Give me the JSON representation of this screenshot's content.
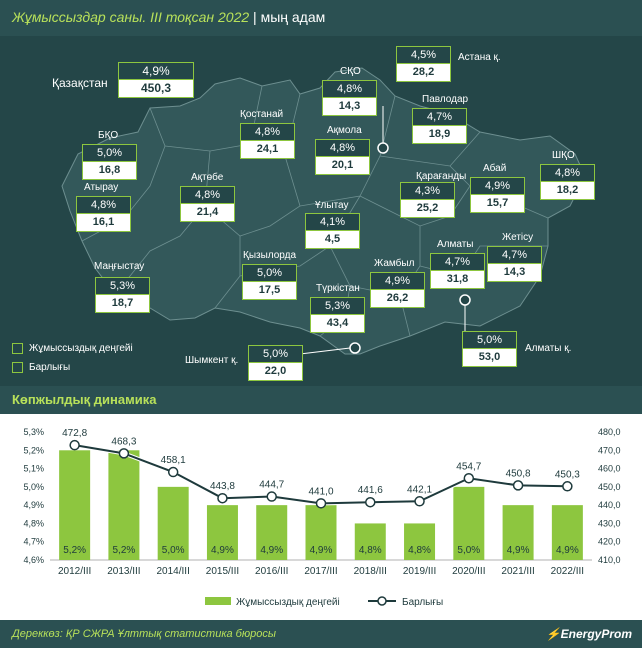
{
  "header": {
    "title": "Жұмыссыздар саны. III тоқсан 2022",
    "title_sep": " | ",
    "title_unit": "мың адам"
  },
  "map": {
    "kazakhstan": {
      "name": "Қазақстан",
      "rate": "4,9%",
      "total": "450,3"
    },
    "regions": [
      {
        "id": "sko",
        "name": "СҚО",
        "rate": "4,8%",
        "total": "14,3"
      },
      {
        "id": "astana",
        "name": "Астана қ.",
        "rate": "4,5%",
        "total": "28,2"
      },
      {
        "id": "kostanay",
        "name": "Қостанай",
        "rate": "4,8%",
        "total": "24,1"
      },
      {
        "id": "akmola",
        "name": "Ақмола",
        "rate": "4,8%",
        "total": "20,1"
      },
      {
        "id": "pavlodar",
        "name": "Павлодар",
        "rate": "4,7%",
        "total": "18,9"
      },
      {
        "id": "bko",
        "name": "БҚО",
        "rate": "5,0%",
        "total": "16,8"
      },
      {
        "id": "aktobe",
        "name": "Ақтөбе",
        "rate": "4,8%",
        "total": "21,4"
      },
      {
        "id": "atyrau",
        "name": "Атырау",
        "rate": "4,8%",
        "total": "16,1"
      },
      {
        "id": "karaganda",
        "name": "Қарағанды",
        "rate": "4,3%",
        "total": "25,2"
      },
      {
        "id": "abay",
        "name": "Абай",
        "rate": "4,9%",
        "total": "15,7"
      },
      {
        "id": "shko",
        "name": "ШҚО",
        "rate": "4,8%",
        "total": "18,2"
      },
      {
        "id": "ulytau",
        "name": "Ұлытау",
        "rate": "4,1%",
        "total": "4,5"
      },
      {
        "id": "zhetysu",
        "name": "Жетісу",
        "rate": "4,7%",
        "total": "14,3"
      },
      {
        "id": "mangystau",
        "name": "Маңғыстау",
        "rate": "5,3%",
        "total": "18,7"
      },
      {
        "id": "kyzylorda",
        "name": "Қызылорда",
        "rate": "5,0%",
        "total": "17,5"
      },
      {
        "id": "zhambyl",
        "name": "Жамбыл",
        "rate": "4,9%",
        "total": "26,2"
      },
      {
        "id": "almaty_reg",
        "name": "Алматы",
        "rate": "4,7%",
        "total": "31,8"
      },
      {
        "id": "turkistan",
        "name": "Түркістан",
        "rate": "5,3%",
        "total": "43,4"
      },
      {
        "id": "shymkent",
        "name": "Шымкент қ.",
        "rate": "5,0%",
        "total": "22,0"
      },
      {
        "id": "almaty_city",
        "name": "Алматы қ.",
        "rate": "5,0%",
        "total": "53,0"
      }
    ],
    "legend": {
      "rate_label": "Жұмыссыздық деңгейі",
      "total_label": "Барлығы"
    }
  },
  "dynamics_title": "Көпжылдық динамика",
  "chart_data": {
    "type": "bar",
    "title": "Көпжылдық динамика",
    "categories": [
      "2012/III",
      "2013/III",
      "2014/III",
      "2015/III",
      "2016/III",
      "2017/III",
      "2018/III",
      "2019/III",
      "2020/III",
      "2021/III",
      "2022/III"
    ],
    "series": [
      {
        "name": "Жұмыссыздық деңгейі",
        "type": "bar",
        "axis": "left",
        "values": [
          5.2,
          5.2,
          5.0,
          4.9,
          4.9,
          4.9,
          4.8,
          4.8,
          5.0,
          4.9,
          4.9
        ],
        "labels": [
          "5,2%",
          "5,2%",
          "5,0%",
          "4,9%",
          "4,9%",
          "4,9%",
          "4,8%",
          "4,8%",
          "5,0%",
          "4,9%",
          "4,9%"
        ]
      },
      {
        "name": "Барлығы",
        "type": "line",
        "axis": "right",
        "values": [
          472.8,
          468.3,
          458.1,
          443.8,
          444.7,
          441.0,
          441.6,
          442.1,
          454.7,
          450.8,
          450.3
        ],
        "labels": [
          "472,8",
          "468,3",
          "458,1",
          "443,8",
          "444,7",
          "441,0",
          "441,6",
          "442,1",
          "454,7",
          "450,8",
          "450,3"
        ]
      }
    ],
    "y_left": {
      "ylim": [
        4.6,
        5.3
      ],
      "ticks": [
        "4,6%",
        "4,7%",
        "4,8%",
        "4,9%",
        "5,0%",
        "5,1%",
        "5,2%",
        "5,3%"
      ]
    },
    "y_right": {
      "ylim": [
        410,
        480
      ],
      "ticks": [
        "410,0",
        "420,0",
        "430,0",
        "440,0",
        "450,0",
        "460,0",
        "470,0",
        "480,0"
      ]
    },
    "legend": [
      "Жұмыссыздық деңгейі",
      "Барлығы"
    ],
    "colors": {
      "bar": "#8dc63f",
      "line": "#ffffff",
      "line_stroke": "#1e3a3c"
    }
  },
  "footer": {
    "source": "Дереккөз: ҚР СЖРА Ұлттық статистика бюросы",
    "brand": "EnergyProm"
  }
}
